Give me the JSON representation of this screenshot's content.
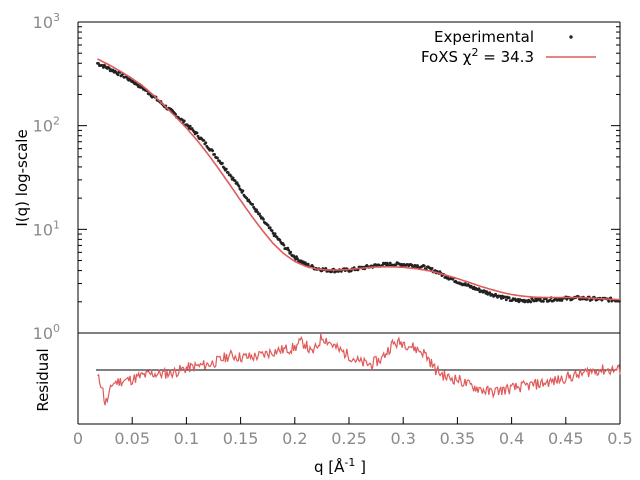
{
  "chart_data": [
    {
      "type": "scatter",
      "panel": "main",
      "xlabel": "",
      "ylabel": "I(q) log-scale",
      "y_scale": "log",
      "xlim": [
        0,
        0.5
      ],
      "ylim": [
        1,
        1000
      ],
      "y_ticks": [
        {
          "base": "10",
          "exp": "0",
          "value": 1
        },
        {
          "base": "10",
          "exp": "1",
          "value": 10
        },
        {
          "base": "10",
          "exp": "2",
          "value": 100
        },
        {
          "base": "10",
          "exp": "3",
          "value": 1000
        }
      ],
      "legend": {
        "placement": "top-right",
        "entries": [
          {
            "label": "Experimental",
            "marker": "dots",
            "color": "#222222"
          },
          {
            "label": "FoXS χ",
            "exp": "2",
            "suffix": " = 34.3",
            "marker": "line",
            "color": "#e05a5a"
          }
        ]
      },
      "series": [
        {
          "name": "Experimental",
          "color": "#222222",
          "x": [
            0.018,
            0.03,
            0.04,
            0.05,
            0.06,
            0.07,
            0.08,
            0.09,
            0.1,
            0.11,
            0.12,
            0.13,
            0.14,
            0.15,
            0.16,
            0.17,
            0.18,
            0.19,
            0.2,
            0.21,
            0.22,
            0.23,
            0.24,
            0.25,
            0.26,
            0.27,
            0.28,
            0.29,
            0.3,
            0.31,
            0.32,
            0.33,
            0.34,
            0.35,
            0.36,
            0.37,
            0.38,
            0.39,
            0.4,
            0.41,
            0.42,
            0.43,
            0.44,
            0.45,
            0.46,
            0.47,
            0.48,
            0.49,
            0.5
          ],
          "y": [
            400,
            350,
            310,
            270,
            230,
            190,
            155,
            128,
            103,
            82,
            63,
            47,
            34,
            24.5,
            17.5,
            12.5,
            9.2,
            6.9,
            5.4,
            4.6,
            4.2,
            4.05,
            4.0,
            4.05,
            4.2,
            4.4,
            4.55,
            4.6,
            4.6,
            4.5,
            4.3,
            3.95,
            3.5,
            3.15,
            2.85,
            2.6,
            2.4,
            2.25,
            2.08,
            2.05,
            2.08,
            2.1,
            2.12,
            2.15,
            2.18,
            2.15,
            2.12,
            2.1,
            2.08
          ]
        },
        {
          "name": "FoXS",
          "color": "#e05a5a",
          "x": [
            0.018,
            0.03,
            0.04,
            0.05,
            0.06,
            0.07,
            0.08,
            0.09,
            0.1,
            0.11,
            0.12,
            0.13,
            0.14,
            0.15,
            0.16,
            0.17,
            0.18,
            0.19,
            0.2,
            0.21,
            0.22,
            0.23,
            0.24,
            0.25,
            0.26,
            0.27,
            0.28,
            0.29,
            0.3,
            0.31,
            0.32,
            0.33,
            0.34,
            0.35,
            0.36,
            0.37,
            0.38,
            0.39,
            0.4,
            0.41,
            0.42,
            0.43,
            0.44,
            0.45,
            0.46,
            0.47,
            0.48,
            0.49,
            0.5
          ],
          "y": [
            440,
            380,
            330,
            285,
            240,
            195,
            155,
            122,
            95,
            72,
            53,
            38,
            27,
            19,
            13.5,
            9.8,
            7.3,
            5.8,
            4.9,
            4.4,
            4.15,
            4.05,
            4.05,
            4.1,
            4.2,
            4.3,
            4.35,
            4.35,
            4.3,
            4.2,
            4.05,
            3.85,
            3.6,
            3.35,
            3.1,
            2.85,
            2.65,
            2.48,
            2.35,
            2.27,
            2.22,
            2.2,
            2.2,
            2.2,
            2.2,
            2.18,
            2.15,
            2.12,
            2.1
          ]
        }
      ]
    },
    {
      "type": "line",
      "panel": "residual",
      "xlabel": "q [Å",
      "xlabel_exp": "-1",
      "xlabel_suffix": " ]",
      "ylabel": "Residual",
      "xlim": [
        0,
        0.5
      ],
      "x_ticks": [
        "0",
        "0.05",
        "0.1",
        "0.15",
        "0.2",
        "0.25",
        "0.3",
        "0.35",
        "0.4",
        "0.45",
        "0.5"
      ],
      "zero_line": true,
      "series": [
        {
          "name": "Residual",
          "color": "#e05a5a",
          "x": [
            0.018,
            0.022,
            0.025,
            0.028,
            0.032,
            0.04,
            0.05,
            0.06,
            0.07,
            0.08,
            0.09,
            0.1,
            0.11,
            0.12,
            0.13,
            0.14,
            0.15,
            0.16,
            0.17,
            0.18,
            0.19,
            0.2,
            0.205,
            0.21,
            0.215,
            0.22,
            0.225,
            0.23,
            0.24,
            0.25,
            0.26,
            0.27,
            0.28,
            0.29,
            0.3,
            0.31,
            0.32,
            0.33,
            0.34,
            0.35,
            0.36,
            0.37,
            0.38,
            0.39,
            0.4,
            0.41,
            0.42,
            0.43,
            0.44,
            0.45,
            0.46,
            0.47,
            0.48,
            0.49,
            0.5
          ],
          "y": [
            -0.2,
            -0.4,
            -0.9,
            -0.75,
            -0.35,
            -0.3,
            -0.25,
            -0.15,
            -0.1,
            -0.1,
            -0.05,
            0.05,
            0.1,
            0.15,
            0.25,
            0.4,
            0.35,
            0.35,
            0.4,
            0.5,
            0.55,
            0.6,
            0.75,
            0.7,
            0.45,
            0.6,
            0.9,
            0.8,
            0.55,
            0.4,
            0.2,
            0.15,
            0.3,
            0.7,
            0.75,
            0.6,
            0.45,
            0.0,
            -0.2,
            -0.25,
            -0.4,
            -0.5,
            -0.6,
            -0.55,
            -0.5,
            -0.45,
            -0.4,
            -0.35,
            -0.3,
            -0.2,
            -0.15,
            -0.05,
            0.0,
            0.0,
            0.0
          ]
        }
      ]
    }
  ]
}
